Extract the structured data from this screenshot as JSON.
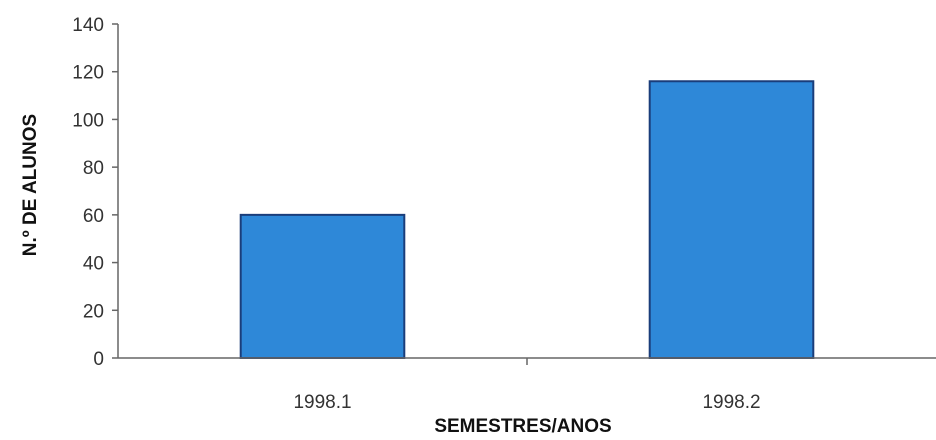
{
  "chart_data": {
    "type": "bar",
    "title": "",
    "categories": [
      "1998.1",
      "1998.2"
    ],
    "values": [
      60,
      116
    ],
    "xlabel": "SEMESTRES/ANOS",
    "ylabel": "N.º DE ALUNOS",
    "ylim": [
      0,
      140
    ],
    "yticks": [
      "0",
      "20",
      "40",
      "60",
      "80",
      "100",
      "120",
      "140"
    ],
    "grid": false,
    "legend": "none",
    "colors": {
      "bar_fill": "#2e88d8",
      "bar_stroke": "#1a3d7a",
      "axis": "#666666"
    }
  }
}
